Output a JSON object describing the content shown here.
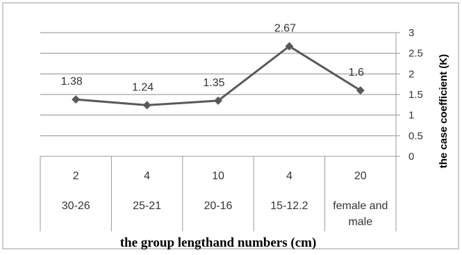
{
  "chart_data": {
    "type": "line",
    "categories": [
      {
        "count": "2",
        "length": "30-26"
      },
      {
        "count": "4",
        "length": "25-21"
      },
      {
        "count": "10",
        "length": "20-16"
      },
      {
        "count": "4",
        "length": "15-12.2"
      },
      {
        "count": "20",
        "length": [
          "female and",
          "male"
        ]
      }
    ],
    "series": [
      {
        "values": [
          1.38,
          1.24,
          1.35,
          2.67,
          1.6
        ],
        "labels": [
          "1.38",
          "1.24",
          "1.35",
          "2.67",
          "1.6"
        ]
      }
    ],
    "xlabel": "the group lengthand numbers (cm)",
    "ylabel": "the case coefficient (K)",
    "ylim": [
      0,
      3
    ],
    "yticks": [
      "0",
      "0.5",
      "1",
      "1.5",
      "2",
      "2.5",
      "3"
    ],
    "y_axis_side": "right",
    "grid": true,
    "legend": "none",
    "colors": {
      "line": "#595959",
      "grid": "#8c8c8c",
      "frame": "#999999"
    }
  }
}
